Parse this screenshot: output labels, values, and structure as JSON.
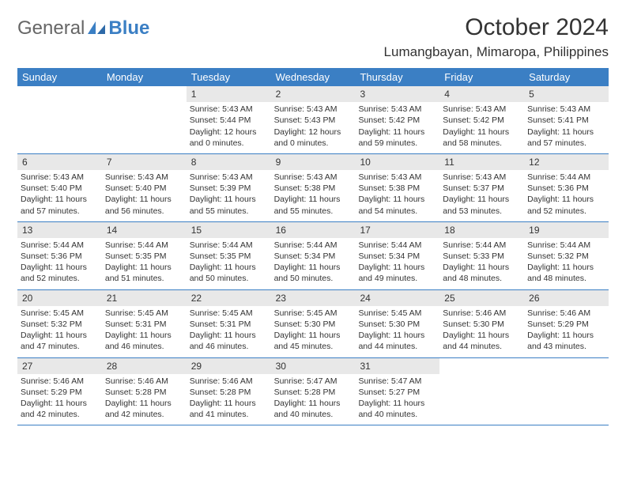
{
  "logo": {
    "text1": "General",
    "text2": "Blue"
  },
  "title": "October 2024",
  "location": "Lumangbayan, Mimaropa, Philippines",
  "colors": {
    "header_bg": "#3b7fc4",
    "daynum_bg": "#e8e8e8",
    "text": "#333333",
    "page_bg": "#ffffff"
  },
  "weekdays": [
    "Sunday",
    "Monday",
    "Tuesday",
    "Wednesday",
    "Thursday",
    "Friday",
    "Saturday"
  ],
  "weeks": [
    [
      null,
      null,
      {
        "n": "1",
        "sr": "Sunrise: 5:43 AM",
        "ss": "Sunset: 5:44 PM",
        "dl": "Daylight: 12 hours and 0 minutes."
      },
      {
        "n": "2",
        "sr": "Sunrise: 5:43 AM",
        "ss": "Sunset: 5:43 PM",
        "dl": "Daylight: 12 hours and 0 minutes."
      },
      {
        "n": "3",
        "sr": "Sunrise: 5:43 AM",
        "ss": "Sunset: 5:42 PM",
        "dl": "Daylight: 11 hours and 59 minutes."
      },
      {
        "n": "4",
        "sr": "Sunrise: 5:43 AM",
        "ss": "Sunset: 5:42 PM",
        "dl": "Daylight: 11 hours and 58 minutes."
      },
      {
        "n": "5",
        "sr": "Sunrise: 5:43 AM",
        "ss": "Sunset: 5:41 PM",
        "dl": "Daylight: 11 hours and 57 minutes."
      }
    ],
    [
      {
        "n": "6",
        "sr": "Sunrise: 5:43 AM",
        "ss": "Sunset: 5:40 PM",
        "dl": "Daylight: 11 hours and 57 minutes."
      },
      {
        "n": "7",
        "sr": "Sunrise: 5:43 AM",
        "ss": "Sunset: 5:40 PM",
        "dl": "Daylight: 11 hours and 56 minutes."
      },
      {
        "n": "8",
        "sr": "Sunrise: 5:43 AM",
        "ss": "Sunset: 5:39 PM",
        "dl": "Daylight: 11 hours and 55 minutes."
      },
      {
        "n": "9",
        "sr": "Sunrise: 5:43 AM",
        "ss": "Sunset: 5:38 PM",
        "dl": "Daylight: 11 hours and 55 minutes."
      },
      {
        "n": "10",
        "sr": "Sunrise: 5:43 AM",
        "ss": "Sunset: 5:38 PM",
        "dl": "Daylight: 11 hours and 54 minutes."
      },
      {
        "n": "11",
        "sr": "Sunrise: 5:43 AM",
        "ss": "Sunset: 5:37 PM",
        "dl": "Daylight: 11 hours and 53 minutes."
      },
      {
        "n": "12",
        "sr": "Sunrise: 5:44 AM",
        "ss": "Sunset: 5:36 PM",
        "dl": "Daylight: 11 hours and 52 minutes."
      }
    ],
    [
      {
        "n": "13",
        "sr": "Sunrise: 5:44 AM",
        "ss": "Sunset: 5:36 PM",
        "dl": "Daylight: 11 hours and 52 minutes."
      },
      {
        "n": "14",
        "sr": "Sunrise: 5:44 AM",
        "ss": "Sunset: 5:35 PM",
        "dl": "Daylight: 11 hours and 51 minutes."
      },
      {
        "n": "15",
        "sr": "Sunrise: 5:44 AM",
        "ss": "Sunset: 5:35 PM",
        "dl": "Daylight: 11 hours and 50 minutes."
      },
      {
        "n": "16",
        "sr": "Sunrise: 5:44 AM",
        "ss": "Sunset: 5:34 PM",
        "dl": "Daylight: 11 hours and 50 minutes."
      },
      {
        "n": "17",
        "sr": "Sunrise: 5:44 AM",
        "ss": "Sunset: 5:34 PM",
        "dl": "Daylight: 11 hours and 49 minutes."
      },
      {
        "n": "18",
        "sr": "Sunrise: 5:44 AM",
        "ss": "Sunset: 5:33 PM",
        "dl": "Daylight: 11 hours and 48 minutes."
      },
      {
        "n": "19",
        "sr": "Sunrise: 5:44 AM",
        "ss": "Sunset: 5:32 PM",
        "dl": "Daylight: 11 hours and 48 minutes."
      }
    ],
    [
      {
        "n": "20",
        "sr": "Sunrise: 5:45 AM",
        "ss": "Sunset: 5:32 PM",
        "dl": "Daylight: 11 hours and 47 minutes."
      },
      {
        "n": "21",
        "sr": "Sunrise: 5:45 AM",
        "ss": "Sunset: 5:31 PM",
        "dl": "Daylight: 11 hours and 46 minutes."
      },
      {
        "n": "22",
        "sr": "Sunrise: 5:45 AM",
        "ss": "Sunset: 5:31 PM",
        "dl": "Daylight: 11 hours and 46 minutes."
      },
      {
        "n": "23",
        "sr": "Sunrise: 5:45 AM",
        "ss": "Sunset: 5:30 PM",
        "dl": "Daylight: 11 hours and 45 minutes."
      },
      {
        "n": "24",
        "sr": "Sunrise: 5:45 AM",
        "ss": "Sunset: 5:30 PM",
        "dl": "Daylight: 11 hours and 44 minutes."
      },
      {
        "n": "25",
        "sr": "Sunrise: 5:46 AM",
        "ss": "Sunset: 5:30 PM",
        "dl": "Daylight: 11 hours and 44 minutes."
      },
      {
        "n": "26",
        "sr": "Sunrise: 5:46 AM",
        "ss": "Sunset: 5:29 PM",
        "dl": "Daylight: 11 hours and 43 minutes."
      }
    ],
    [
      {
        "n": "27",
        "sr": "Sunrise: 5:46 AM",
        "ss": "Sunset: 5:29 PM",
        "dl": "Daylight: 11 hours and 42 minutes."
      },
      {
        "n": "28",
        "sr": "Sunrise: 5:46 AM",
        "ss": "Sunset: 5:28 PM",
        "dl": "Daylight: 11 hours and 42 minutes."
      },
      {
        "n": "29",
        "sr": "Sunrise: 5:46 AM",
        "ss": "Sunset: 5:28 PM",
        "dl": "Daylight: 11 hours and 41 minutes."
      },
      {
        "n": "30",
        "sr": "Sunrise: 5:47 AM",
        "ss": "Sunset: 5:28 PM",
        "dl": "Daylight: 11 hours and 40 minutes."
      },
      {
        "n": "31",
        "sr": "Sunrise: 5:47 AM",
        "ss": "Sunset: 5:27 PM",
        "dl": "Daylight: 11 hours and 40 minutes."
      },
      null,
      null
    ]
  ]
}
